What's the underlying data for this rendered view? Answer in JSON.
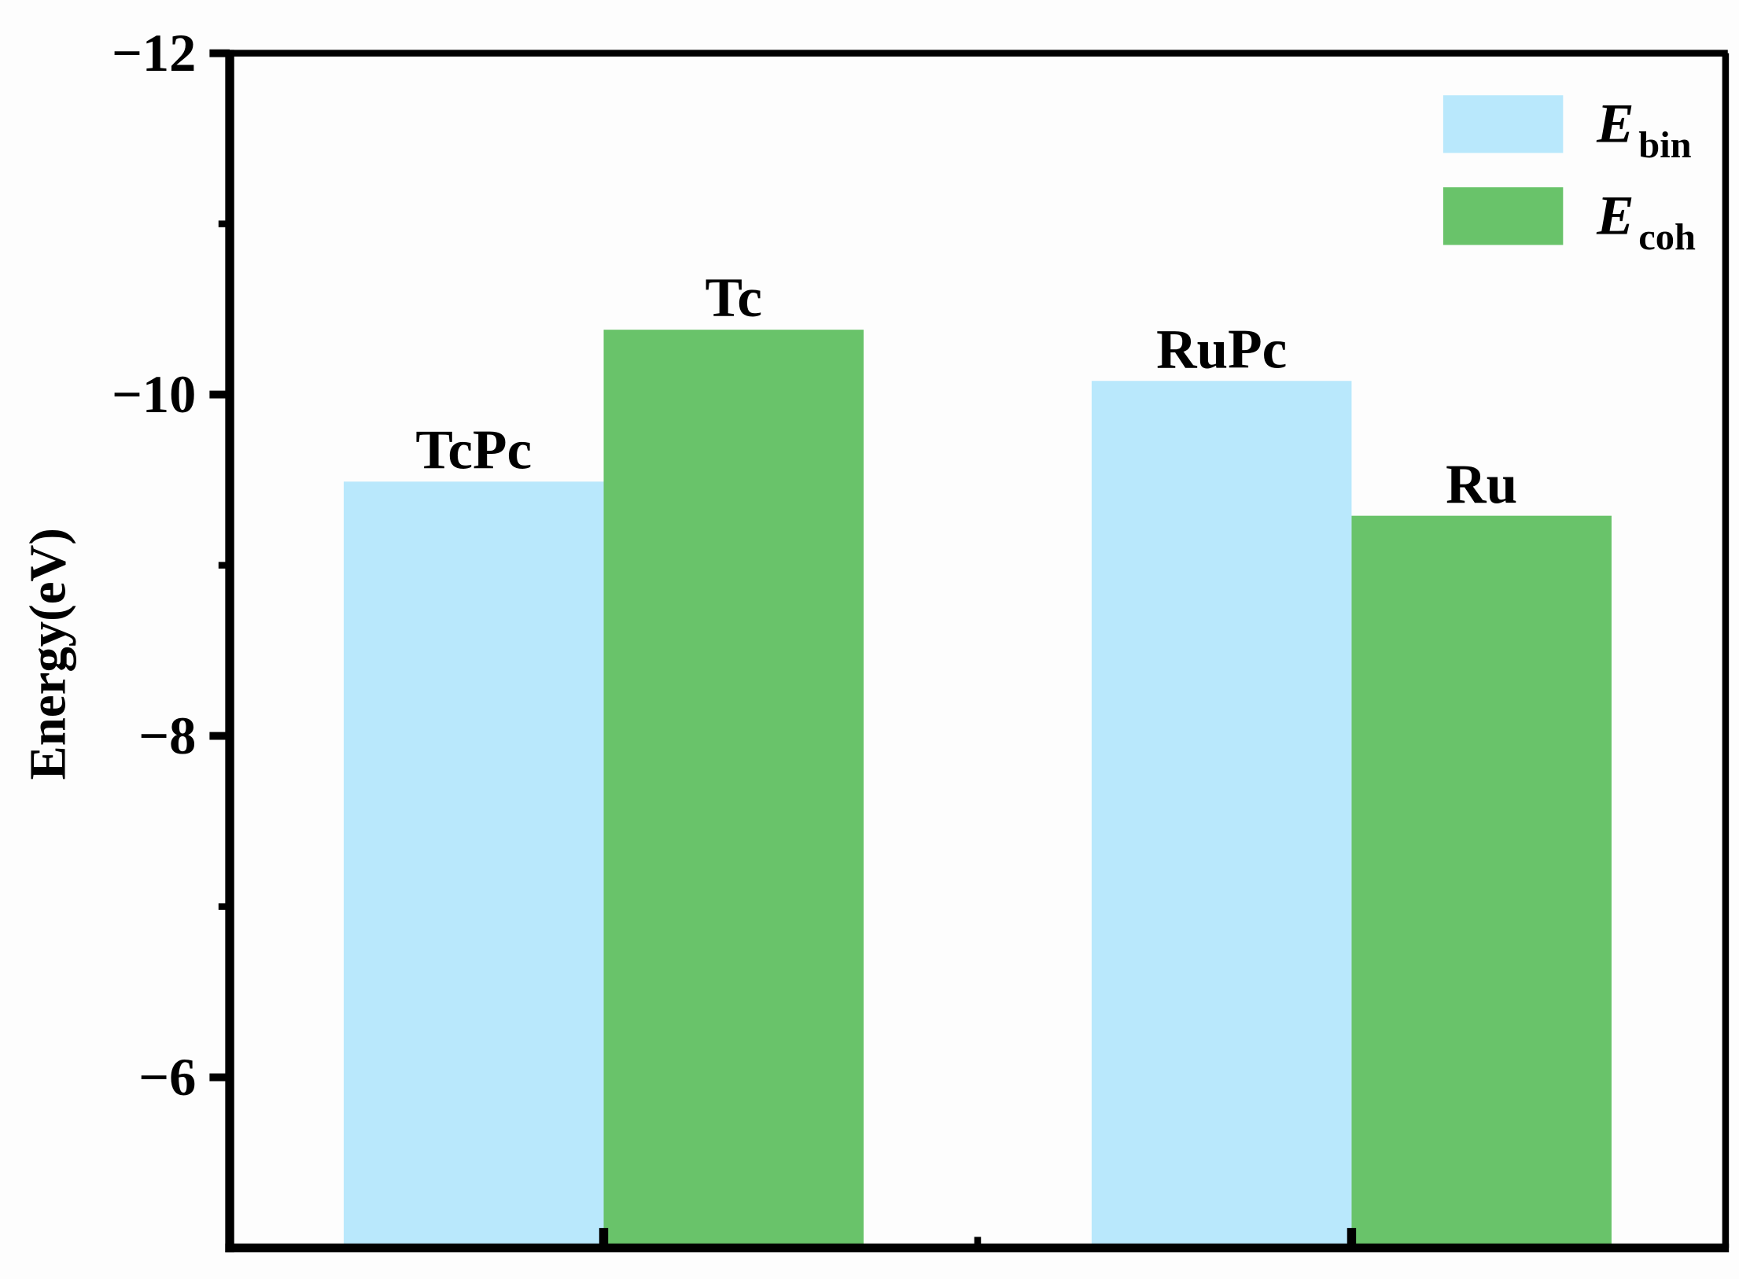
{
  "chart_data": {
    "type": "bar",
    "y_label": "Energy(eV)",
    "categories": [
      null,
      null
    ],
    "ylim": [
      -5,
      -12
    ],
    "yticks": [
      {
        "value": -12,
        "label": "−12"
      },
      {
        "value": -10,
        "label": "−10"
      },
      {
        "value": -8,
        "label": "−8"
      },
      {
        "value": -6,
        "label": "−6"
      }
    ],
    "series": [
      {
        "name": "Ebin",
        "color": "#b9e8fc",
        "values": [
          -9.49,
          -10.08
        ],
        "bar_labels": [
          "TcPc",
          "RuPc"
        ]
      },
      {
        "name": "Ecoh",
        "color": "#69c36a",
        "values": [
          -10.38,
          -9.29
        ],
        "bar_labels": [
          "Tc",
          "Ru"
        ]
      }
    ],
    "legend": "upper right"
  }
}
